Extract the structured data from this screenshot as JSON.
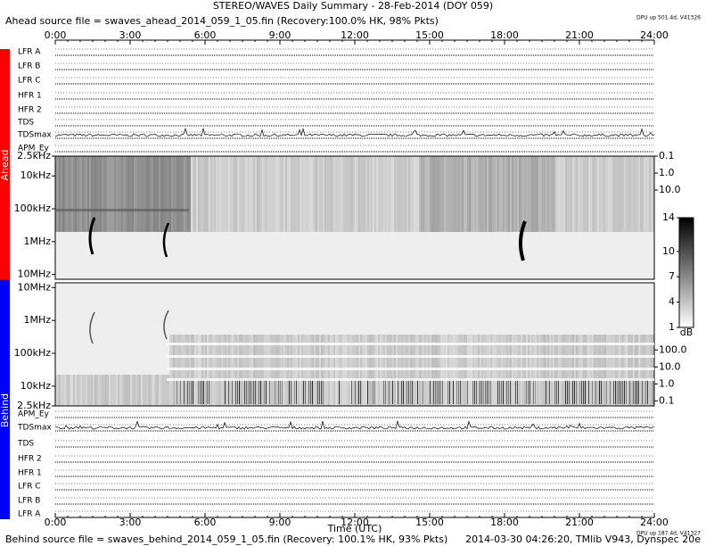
{
  "chart_data": {
    "type": "spectrogram",
    "title": "STEREO/WAVES Daily Summary - 28-Feb-2014 (DOY 059)",
    "source_top": "Ahead source file = swaves_ahead_2014_059_1_05.fin (Recovery:100.0% HK, 98% Pkts)",
    "source_bottom": "Behind source file = swaves_behind_2014_059_1_05.fin (Recovery: 100.1% HK, 93% Pkts)",
    "footer": "2014-03-30 04:26:20, TMlib V943, Dynspec 20e",
    "dpu_top": "DPU up 501.4d, V41326",
    "dpu_bottom": "DPU up 187.4d, V41327",
    "x_label": "Time (UTC)",
    "xlim": [
      0,
      24
    ],
    "xticks": [
      {
        "value": 0,
        "label": "0:00"
      },
      {
        "value": 3,
        "label": "3:00"
      },
      {
        "value": 6,
        "label": "6:00"
      },
      {
        "value": 9,
        "label": "9:00"
      },
      {
        "value": 12,
        "label": "12:00"
      },
      {
        "value": 15,
        "label": "15:00"
      },
      {
        "value": 18,
        "label": "18:00"
      },
      {
        "value": 21,
        "label": "21:00"
      },
      {
        "value": 24,
        "label": "24:00"
      }
    ],
    "panels": [
      {
        "name": "Ahead",
        "color": "#ff0000",
        "log": true,
        "inverted": true,
        "ylim": [
          2.5,
          14000
        ],
        "yticks": [
          {
            "value": 2.5,
            "label": "2.5kHz"
          },
          {
            "value": 10,
            "label": "10kHz"
          },
          {
            "value": 100,
            "label": "100kHz"
          },
          {
            "value": 1000,
            "label": "1MHz"
          },
          {
            "value": 10000,
            "label": "10MHz"
          }
        ],
        "y2lim": [
          0.1,
          1800000
        ],
        "y2ticks": [
          {
            "value": 0.1,
            "label": "0.1"
          },
          {
            "value": 1,
            "label": "1.0"
          },
          {
            "value": 10,
            "label": "10.0"
          }
        ],
        "rows": [
          "LFR A",
          "LFR B",
          "LFR C",
          "HFR 1",
          "HFR 2",
          "TDS",
          "TDSmax",
          "APM_Ey"
        ]
      },
      {
        "name": "Behind",
        "color": "#0000ff",
        "log": true,
        "inverted": false,
        "ylim": [
          2.5,
          14000
        ],
        "yticks": [
          {
            "value": 2.5,
            "label": "2.5kHz"
          },
          {
            "value": 10,
            "label": "10kHz"
          },
          {
            "value": 100,
            "label": "100kHz"
          },
          {
            "value": 1000,
            "label": "1MHz"
          },
          {
            "value": 10000,
            "label": "10MHz"
          }
        ],
        "y2lim": [
          0.05,
          910000
        ],
        "y2ticks": [
          {
            "value": 0.1,
            "label": "0.1"
          },
          {
            "value": 1,
            "label": "1.0"
          },
          {
            "value": 10,
            "label": "10.0"
          },
          {
            "value": 100,
            "label": "100.0"
          }
        ],
        "rows": [
          "APM_Ey",
          "TDSmax",
          "TDS",
          "HFR 2",
          "HFR 1",
          "LFR C",
          "LFR B",
          "LFR A"
        ]
      }
    ],
    "colorbar": {
      "label": "dB",
      "clim": [
        1,
        14
      ],
      "ticks": [
        14,
        10,
        7,
        4,
        1
      ]
    }
  }
}
